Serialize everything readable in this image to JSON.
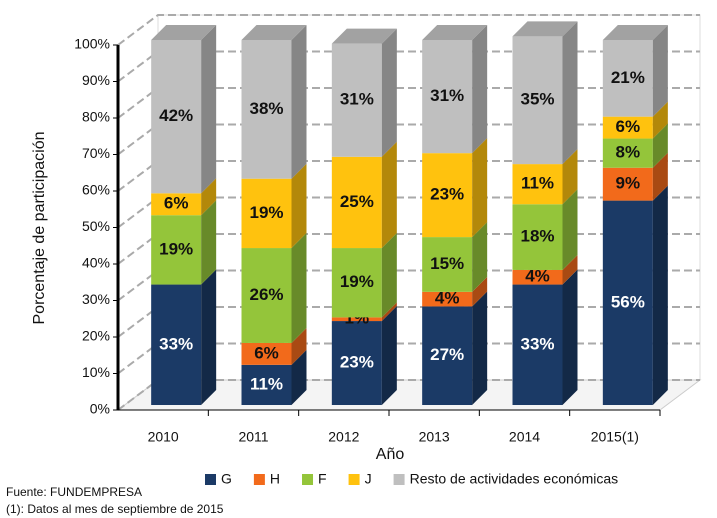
{
  "chart_data": {
    "type": "bar3d_stacked",
    "categories": [
      "2010",
      "2011",
      "2012",
      "2013",
      "2014",
      "2015(1)"
    ],
    "series": [
      {
        "name": "G",
        "color": "#1b3a66",
        "values": [
          33,
          11,
          23,
          27,
          33,
          56
        ],
        "value_labels": [
          "33%",
          "11%",
          "23%",
          "27%",
          "33%",
          "56%"
        ]
      },
      {
        "name": "H",
        "color": "#f26a1b",
        "values": [
          0,
          6,
          1,
          4,
          4,
          9
        ],
        "value_labels": [
          null,
          "6%",
          "1%",
          "4%",
          "4%",
          "9%"
        ]
      },
      {
        "name": "F",
        "color": "#94c53a",
        "values": [
          19,
          26,
          19,
          15,
          18,
          8
        ],
        "value_labels": [
          "19%",
          "26%",
          "19%",
          "15%",
          "18%",
          "8%"
        ]
      },
      {
        "name": "J",
        "color": "#ffc20e",
        "values": [
          6,
          19,
          25,
          23,
          11,
          6
        ],
        "value_labels": [
          "6%",
          "19%",
          "25%",
          "23%",
          "11%",
          "6%"
        ]
      },
      {
        "name": "Resto de actividades económicas",
        "color": "#bfbfbf",
        "values": [
          42,
          38,
          31,
          31,
          35,
          21
        ],
        "value_labels": [
          "42%",
          "38%",
          "31%",
          "31%",
          "35%",
          "21%"
        ]
      }
    ],
    "x_label": "Año",
    "y_label": "Porcentaje de participación",
    "ylim": [
      0,
      100
    ],
    "yticks": [
      {
        "value": 0,
        "label": "0%"
      },
      {
        "value": 10,
        "label": "10%"
      },
      {
        "value": 20,
        "label": "20%"
      },
      {
        "value": 30,
        "label": "30%"
      },
      {
        "value": 40,
        "label": "40%"
      },
      {
        "value": 50,
        "label": "50%"
      },
      {
        "value": 60,
        "label": "60%"
      },
      {
        "value": 70,
        "label": "70%"
      },
      {
        "value": 80,
        "label": "80%"
      },
      {
        "value": 90,
        "label": "90%"
      },
      {
        "value": 100,
        "label": "100%"
      }
    ],
    "grid": true,
    "legend": "bottom",
    "source": "Fuente: FUNDEMPRESA",
    "note": "(1): Datos al mes de septiembre de 2015"
  }
}
